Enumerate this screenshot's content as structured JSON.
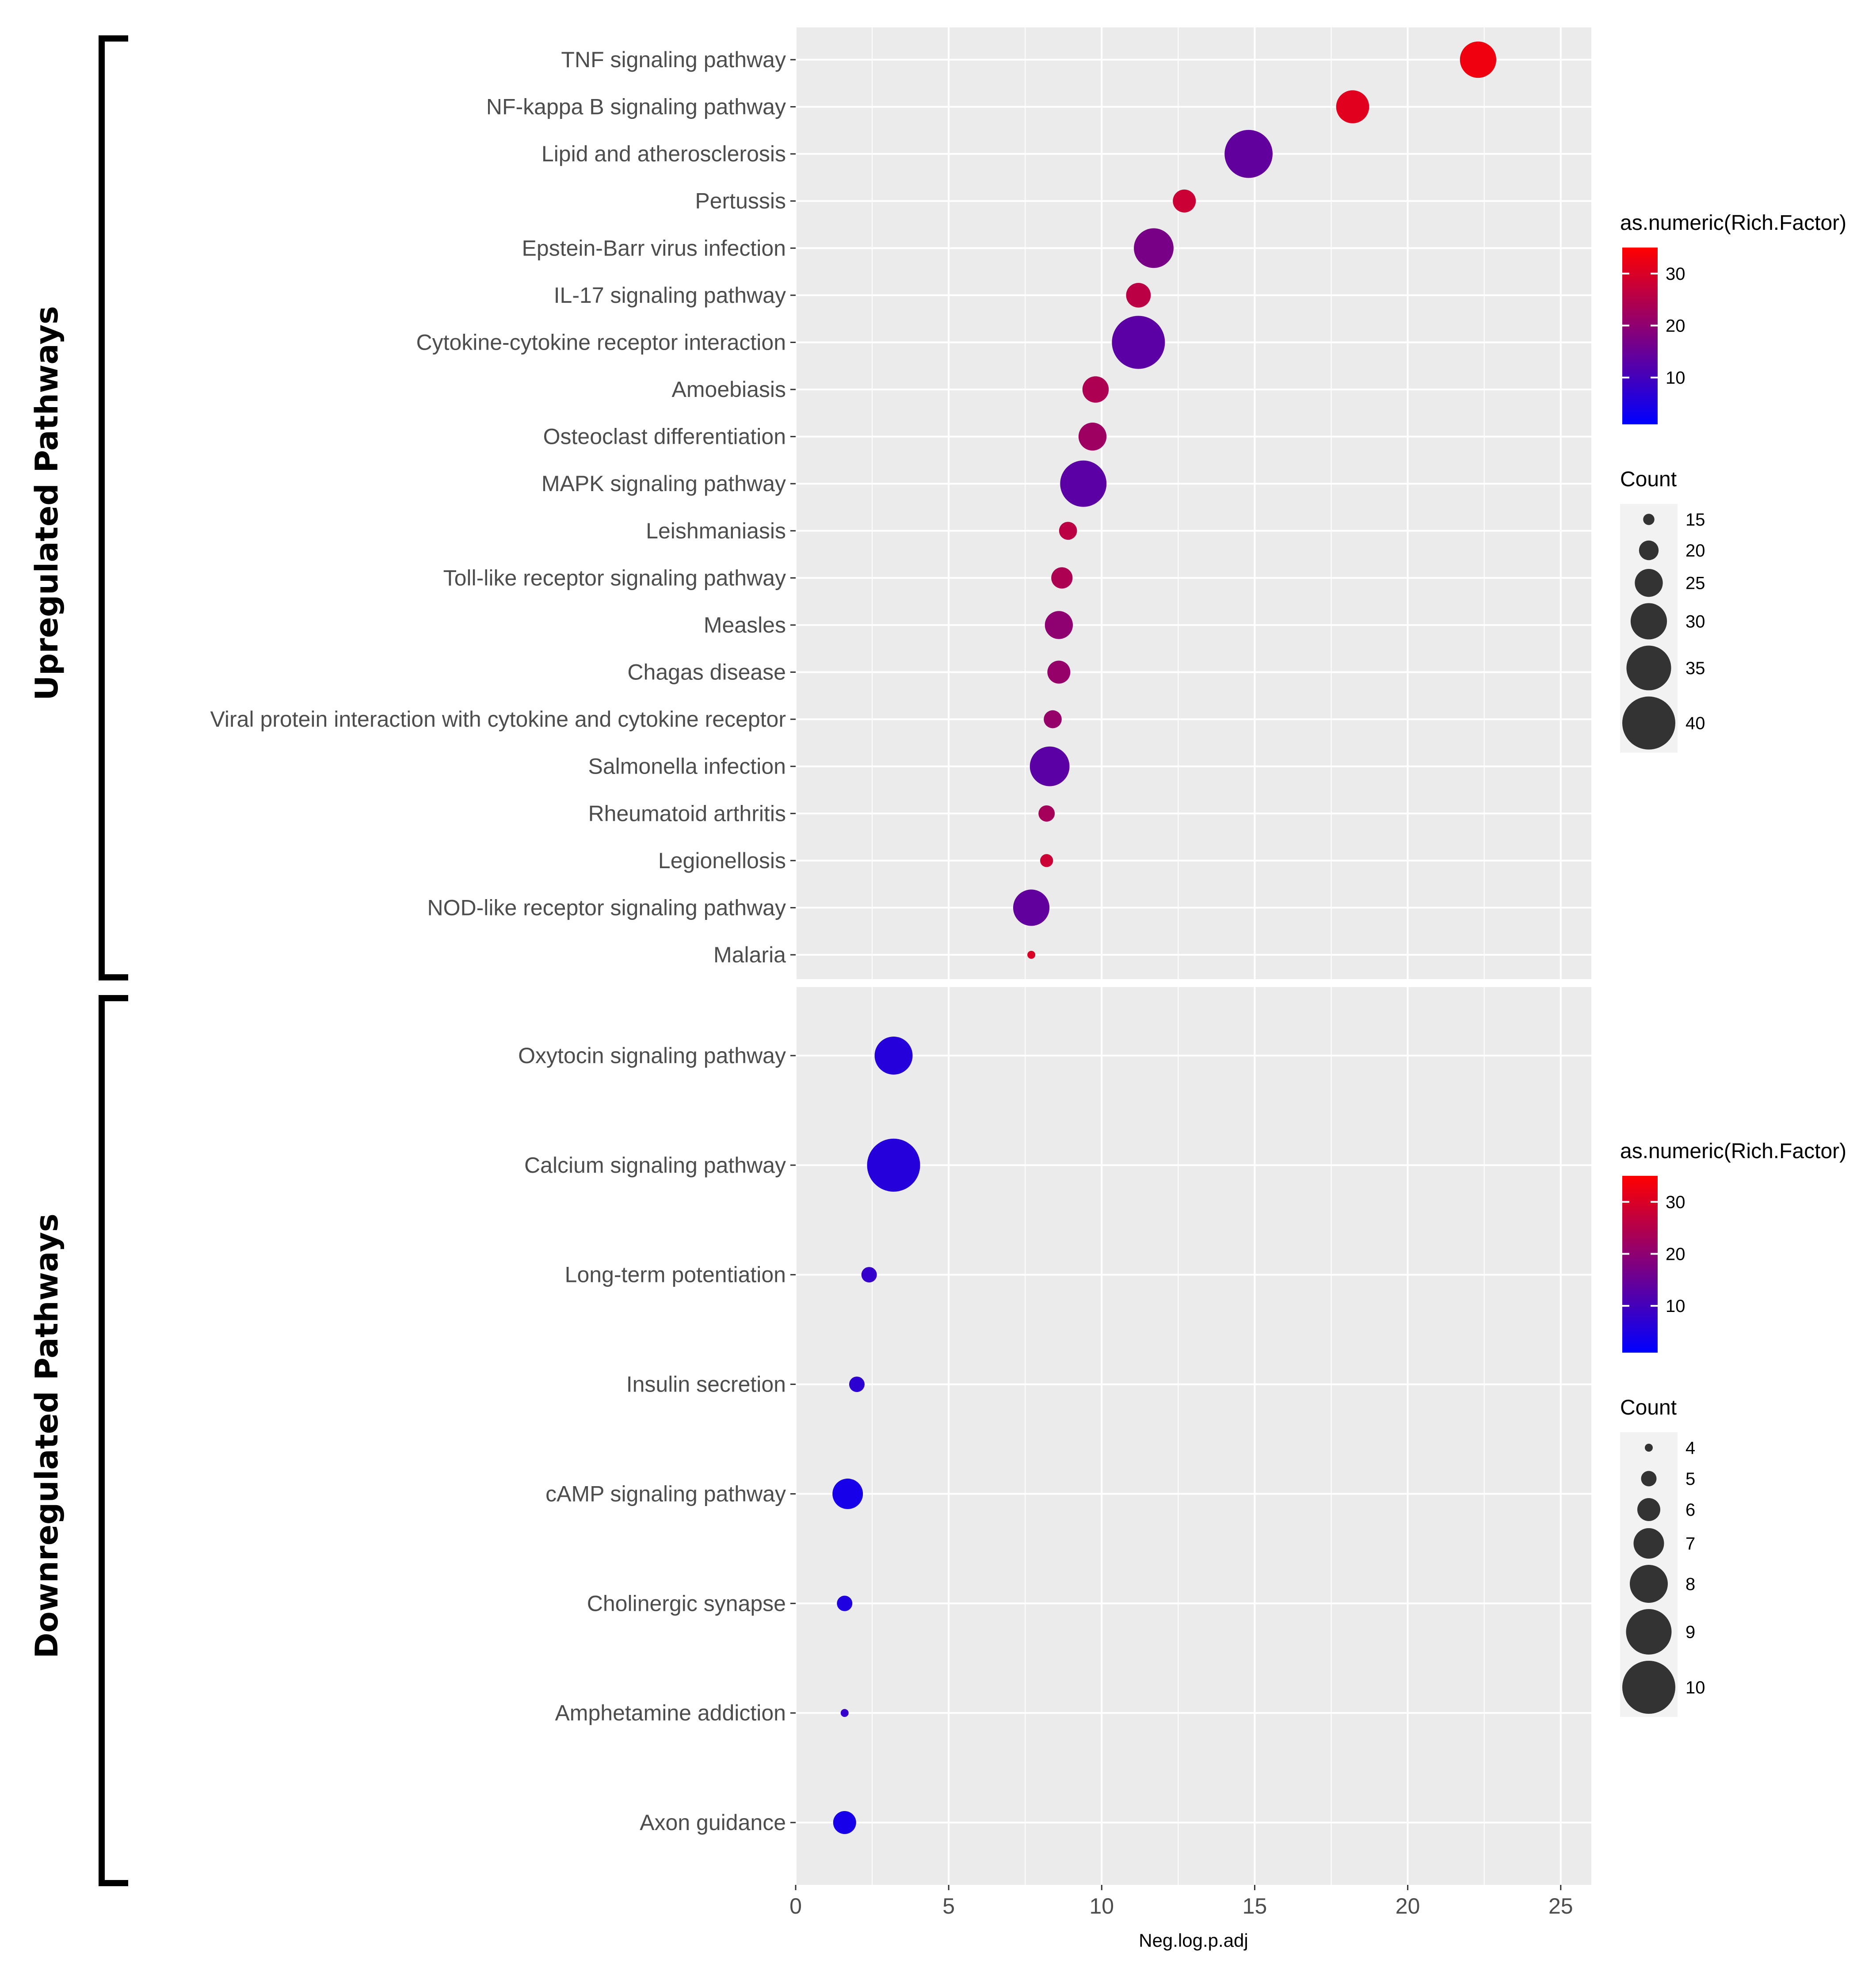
{
  "chart_data": [
    {
      "type": "scatter",
      "group_label": "Upregulated Pathways",
      "xlabel": "Neg.log.p.adj",
      "ylabel": "",
      "xlim": [
        0,
        26
      ],
      "x_ticks": [
        0,
        5,
        10,
        15,
        20,
        25
      ],
      "grid": true,
      "categories": [
        "TNF signaling pathway",
        "NF-kappa B signaling pathway",
        "Lipid and atherosclerosis",
        "Pertussis",
        "Epstein-Barr virus infection",
        "IL-17 signaling pathway",
        "Cytokine-cytokine receptor interaction",
        "Amoebiasis",
        "Osteoclast differentiation",
        "MAPK signaling pathway",
        "Leishmaniasis",
        "Toll-like receptor signaling pathway",
        "Measles",
        "Chagas disease",
        "Viral protein interaction with cytokine and cytokine receptor",
        "Salmonella infection",
        "Rheumatoid arthritis",
        "Legionellosis",
        "NOD-like receptor signaling pathway",
        "Malaria"
      ],
      "x": [
        22.3,
        18.2,
        14.8,
        12.7,
        11.7,
        11.2,
        11.2,
        9.8,
        9.7,
        9.4,
        8.9,
        8.7,
        8.6,
        8.6,
        8.4,
        8.3,
        8.2,
        8.2,
        7.7,
        7.7
      ],
      "count": [
        30,
        28,
        37,
        22,
        32,
        23,
        40,
        24,
        25,
        36,
        19,
        21,
        25,
        22,
        19,
        32,
        18,
        16,
        30,
        13
      ],
      "rich_factor": [
        33,
        31,
        14,
        28,
        17,
        26,
        13,
        24,
        22,
        13,
        26,
        24,
        20,
        21,
        21,
        13,
        23,
        28,
        14,
        30
      ],
      "color_legend": {
        "title": "as.numeric(Rich.Factor)",
        "ticks": [
          10,
          20,
          30
        ],
        "range": [
          1,
          35
        ],
        "low_color": "#0000FF",
        "high_color": "#FF0000"
      },
      "size_legend": {
        "title": "Count",
        "values": [
          15,
          20,
          25,
          30,
          35,
          40
        ],
        "range": [
          13,
          40
        ]
      },
      "legend_position": "right"
    },
    {
      "type": "scatter",
      "group_label": "Downregulated Pathways",
      "xlabel": "Neg.log.p.adj",
      "ylabel": "",
      "xlim": [
        0,
        26
      ],
      "x_ticks": [
        0,
        5,
        10,
        15,
        20,
        25
      ],
      "grid": true,
      "categories": [
        "Oxytocin signaling pathway",
        "Calcium signaling pathway",
        "Long-term potentiation",
        "Insulin secretion",
        "cAMP signaling pathway",
        "Cholinergic synapse",
        "Amphetamine addiction",
        "Axon guidance"
      ],
      "x": [
        3.2,
        3.2,
        2.4,
        2.0,
        1.7,
        1.6,
        1.6,
        1.6
      ],
      "count": [
        8,
        10,
        5,
        5,
        7,
        5,
        4,
        6
      ],
      "rich_factor": [
        6,
        6,
        8,
        7,
        4,
        5,
        8,
        4
      ],
      "color_legend": {
        "title": "as.numeric(Rich.Factor)",
        "ticks": [
          10,
          20,
          30
        ],
        "range": [
          1,
          35
        ],
        "low_color": "#0000FF",
        "high_color": "#FF0000"
      },
      "size_legend": {
        "title": "Count",
        "values": [
          4,
          5,
          6,
          7,
          8,
          9,
          10
        ],
        "range": [
          4,
          10
        ]
      },
      "legend_position": "right"
    }
  ]
}
